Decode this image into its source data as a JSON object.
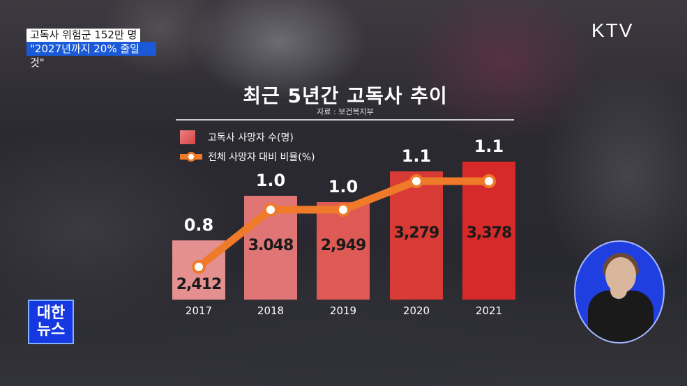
{
  "broadcast": {
    "channel_logo": "KTV",
    "program_badge": [
      "대한",
      "뉴스"
    ],
    "caption_line1": "고독사 위험군 152만 명",
    "caption_line2": "\"2027년까지 20% 줄일 것\""
  },
  "chart_data": {
    "type": "bar",
    "title": "최근 5년간 고독사 추이",
    "subtitle": "자료 : 보건복지부",
    "categories": [
      "2017",
      "2018",
      "2019",
      "2020",
      "2021"
    ],
    "series": [
      {
        "name": "고독사 사망자 수(명)",
        "type": "bar",
        "values": [
          2412,
          3048,
          2949,
          3279,
          3378
        ],
        "labels": [
          "2,412",
          "3.048",
          "2,949",
          "3,279",
          "3,378"
        ]
      },
      {
        "name": "전체 사망자 대비 비율(%)",
        "type": "line",
        "values": [
          0.8,
          1.0,
          1.0,
          1.1,
          1.1
        ],
        "labels": [
          "0.8",
          "1.0",
          "1.0",
          "1.1",
          "1.1"
        ]
      }
    ],
    "legend_position": "top-left",
    "grid": false,
    "colors": {
      "bar_light": "#e58080",
      "bar_dark": "#d62a2a",
      "line": "#ee7a2a",
      "marker_fill": "#ffffff"
    }
  }
}
